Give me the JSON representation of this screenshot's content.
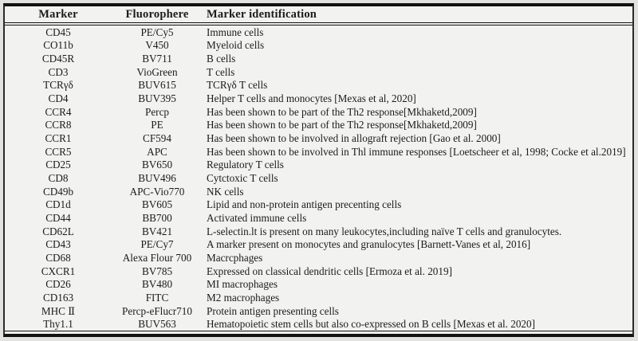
{
  "table": {
    "columns": [
      "Marker",
      "Fluorophere",
      "Marker identification"
    ],
    "rows": [
      {
        "marker": "CD45",
        "fluorophore": "PE/Cy5",
        "identification": "Immune cells"
      },
      {
        "marker": "CO11b",
        "fluorophore": "V450",
        "identification": "Myeloid cells"
      },
      {
        "marker": "CD45R",
        "fluorophore": "BV711",
        "identification": "B cells"
      },
      {
        "marker": "CD3",
        "fluorophore": "VioGreen",
        "identification": "T cells"
      },
      {
        "marker": "TCRγδ",
        "fluorophore": "BUV615",
        "identification": "TCRγδ T cells"
      },
      {
        "marker": "CD4",
        "fluorophore": "BUV395",
        "identification": "Helper T cells and monocytes [Mexas et al, 2020]"
      },
      {
        "marker": "CCR4",
        "fluorophore": "Percp",
        "identification": "Has been shown to be part of the Th2 response[Mkhaketd,2009]"
      },
      {
        "marker": "CCR8",
        "fluorophore": "PE",
        "identification": "Has been shown to be part of the Th2 response[Mkhaketd,2009]"
      },
      {
        "marker": "CCR1",
        "fluorophore": "CF594",
        "identification": "Has been shown to be involved in allograft rejection [Gao et al. 2000]"
      },
      {
        "marker": "CCR5",
        "fluorophore": "APC",
        "identification": "Has been shown to be involved in Thl immune responses [Loetscheer et al, 1998; Cocke et al.2019]"
      },
      {
        "marker": "CD25",
        "fluorophore": "BV650",
        "identification": "Regulatory T cells"
      },
      {
        "marker": "CD8",
        "fluorophore": "BUV496",
        "identification": "Cytctoxic T cells"
      },
      {
        "marker": "CD49b",
        "fluorophore": "APC-Vio770",
        "identification": "NK cells"
      },
      {
        "marker": "CD1d",
        "fluorophore": "BV605",
        "identification": "Lipid and non-protein antigen precenting cells"
      },
      {
        "marker": "CD44",
        "fluorophore": "BB700",
        "identification": "Activated immune cells"
      },
      {
        "marker": "CD62L",
        "fluorophore": "BV421",
        "identification": "L-selectin.lt is present on many leukocytes,including naïve T cells and granulocytes."
      },
      {
        "marker": "CD43",
        "fluorophore": "PE/Cy7",
        "identification": "A marker present on monocytes and granulocytes [Barnett-Vanes et al, 2016]"
      },
      {
        "marker": "CD68",
        "fluorophore": "Alexa Flour 700",
        "identification": "Macrcphages"
      },
      {
        "marker": "CXCR1",
        "fluorophore": "BV785",
        "identification": "Expressed on classical dendritic cells [Ermoza et al. 2019]"
      },
      {
        "marker": "CD26",
        "fluorophore": "BV480",
        "identification": "MI macrophages"
      },
      {
        "marker": "CD163",
        "fluorophore": "FITC",
        "identification": "M2 macrophages"
      },
      {
        "marker": "MHC Ⅱ",
        "fluorophore": "Percp-eFlucr710",
        "identification": "Protein antigen presenting cells"
      },
      {
        "marker": "Thy1.1",
        "fluorophore": "BUV563",
        "identification": "Hematopoietic stem cells but also co-expressed on B cells [Mexas et al. 2020]"
      }
    ]
  },
  "colors": {
    "table_background": "#f2f2f0",
    "page_background": "#e2e2e0",
    "border": "#121212",
    "text": "#1b1b1b"
  }
}
